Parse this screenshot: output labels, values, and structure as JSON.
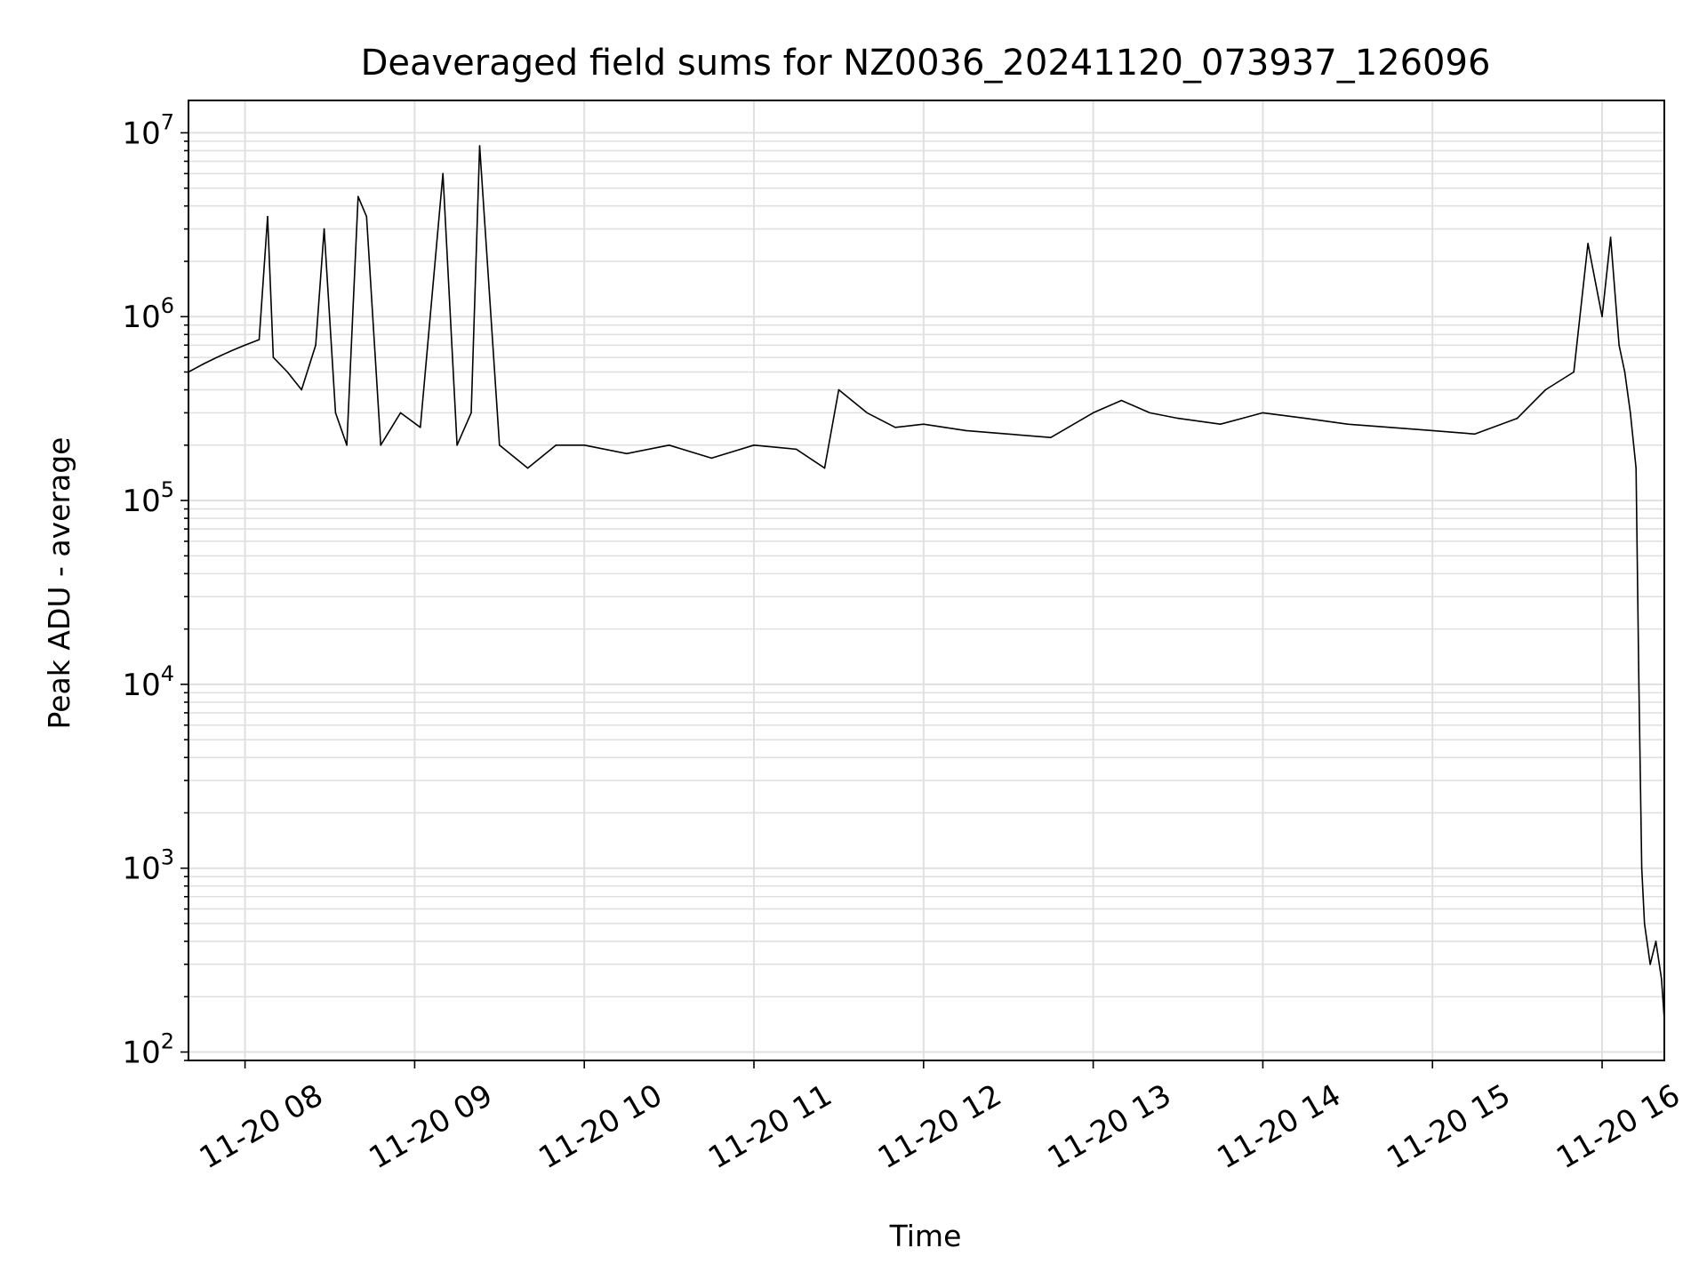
{
  "chart_data": {
    "type": "line",
    "title": "Deaveraged field sums for NZ0036_20241120_073937_126096",
    "xlabel": "Time",
    "ylabel": "Peak ADU - average",
    "yscale": "log",
    "ylim": [
      90,
      15000000
    ],
    "xlim": [
      "2024-11-20T07:40:00",
      "2024-11-20T16:22:00"
    ],
    "grid": true,
    "series_color": "#000000",
    "grid_color": "#e0e0e0",
    "x_ticks": [
      {
        "value": "2024-11-20T08:00:00",
        "label": "11-20 08"
      },
      {
        "value": "2024-11-20T09:00:00",
        "label": "11-20 09"
      },
      {
        "value": "2024-11-20T10:00:00",
        "label": "11-20 10"
      },
      {
        "value": "2024-11-20T11:00:00",
        "label": "11-20 11"
      },
      {
        "value": "2024-11-20T12:00:00",
        "label": "11-20 12"
      },
      {
        "value": "2024-11-20T13:00:00",
        "label": "11-20 13"
      },
      {
        "value": "2024-11-20T14:00:00",
        "label": "11-20 14"
      },
      {
        "value": "2024-11-20T15:00:00",
        "label": "11-20 15"
      },
      {
        "value": "2024-11-20T16:00:00",
        "label": "11-20 16"
      }
    ],
    "y_ticks": [
      {
        "value": 100,
        "base": "10",
        "exp": "2"
      },
      {
        "value": 1000,
        "base": "10",
        "exp": "3"
      },
      {
        "value": 10000,
        "base": "10",
        "exp": "4"
      },
      {
        "value": 100000,
        "base": "10",
        "exp": "5"
      },
      {
        "value": 1000000,
        "base": "10",
        "exp": "6"
      },
      {
        "value": 10000000,
        "base": "10",
        "exp": "7"
      }
    ],
    "series": [
      {
        "x": [
          "2024-11-20T07:40:00",
          "2024-11-20T07:45:00",
          "2024-11-20T07:50:00",
          "2024-11-20T07:55:00",
          "2024-11-20T08:00:00",
          "2024-11-20T08:05:00",
          "2024-11-20T08:08:00",
          "2024-11-20T08:10:00",
          "2024-11-20T08:15:00",
          "2024-11-20T08:20:00",
          "2024-11-20T08:25:00",
          "2024-11-20T08:28:00",
          "2024-11-20T08:32:00",
          "2024-11-20T08:36:00",
          "2024-11-20T08:40:00",
          "2024-11-20T08:43:00",
          "2024-11-20T08:48:00",
          "2024-11-20T08:55:00",
          "2024-11-20T09:02:00",
          "2024-11-20T09:10:00",
          "2024-11-20T09:15:00",
          "2024-11-20T09:20:00",
          "2024-11-20T09:23:00",
          "2024-11-20T09:30:00",
          "2024-11-20T09:40:00",
          "2024-11-20T09:50:00",
          "2024-11-20T10:00:00",
          "2024-11-20T10:15:00",
          "2024-11-20T10:30:00",
          "2024-11-20T10:45:00",
          "2024-11-20T11:00:00",
          "2024-11-20T11:15:00",
          "2024-11-20T11:25:00",
          "2024-11-20T11:30:00",
          "2024-11-20T11:40:00",
          "2024-11-20T11:50:00",
          "2024-11-20T12:00:00",
          "2024-11-20T12:15:00",
          "2024-11-20T12:30:00",
          "2024-11-20T12:45:00",
          "2024-11-20T13:00:00",
          "2024-11-20T13:10:00",
          "2024-11-20T13:20:00",
          "2024-11-20T13:30:00",
          "2024-11-20T13:45:00",
          "2024-11-20T14:00:00",
          "2024-11-20T14:15:00",
          "2024-11-20T14:30:00",
          "2024-11-20T14:45:00",
          "2024-11-20T15:00:00",
          "2024-11-20T15:15:00",
          "2024-11-20T15:30:00",
          "2024-11-20T15:40:00",
          "2024-11-20T15:50:00",
          "2024-11-20T15:55:00",
          "2024-11-20T16:00:00",
          "2024-11-20T16:03:00",
          "2024-11-20T16:06:00",
          "2024-11-20T16:08:00",
          "2024-11-20T16:10:00",
          "2024-11-20T16:12:00",
          "2024-11-20T16:13:00",
          "2024-11-20T16:14:00",
          "2024-11-20T16:15:00",
          "2024-11-20T16:17:00",
          "2024-11-20T16:19:00",
          "2024-11-20T16:21:00",
          "2024-11-20T16:22:00"
        ],
        "y": [
          500000,
          550000,
          600000,
          650000,
          700000,
          750000,
          3500000,
          600000,
          500000,
          400000,
          700000,
          3000000,
          300000,
          200000,
          4500000,
          3500000,
          200000,
          300000,
          250000,
          6000000,
          200000,
          300000,
          8500000,
          200000,
          150000,
          200000,
          200000,
          180000,
          200000,
          170000,
          200000,
          190000,
          150000,
          400000,
          300000,
          250000,
          260000,
          240000,
          230000,
          220000,
          300000,
          350000,
          300000,
          280000,
          260000,
          300000,
          280000,
          260000,
          250000,
          240000,
          230000,
          280000,
          400000,
          500000,
          2500000,
          1000000,
          2700000,
          700000,
          500000,
          300000,
          150000,
          10000,
          1000,
          500,
          300,
          400,
          250,
          150
        ]
      }
    ]
  }
}
